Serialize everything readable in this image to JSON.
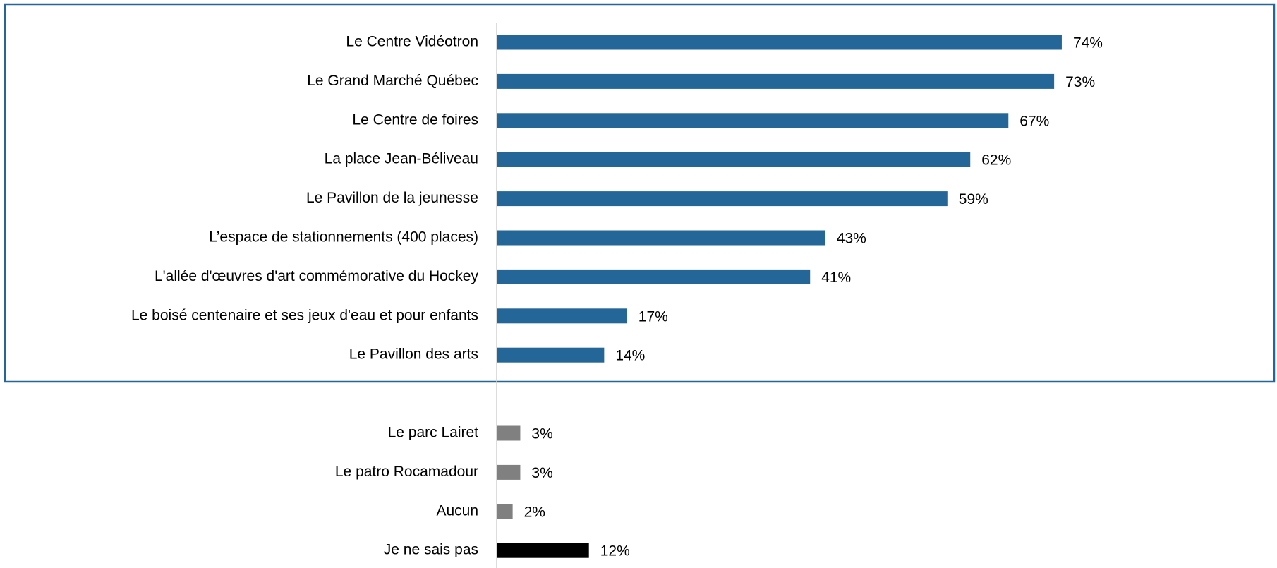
{
  "chart_data": {
    "type": "bar",
    "orientation": "horizontal",
    "categories": [
      "Le Centre Vidéotron",
      "Le Grand Marché Québec",
      "Le Centre de foires",
      "La place Jean-Béliveau",
      "Le Pavillon de la jeunesse",
      "L’espace de stationnements (400 places)",
      "L'allée d'œuvres d'art commémorative du Hockey",
      "Le boisé centenaire et ses jeux d'eau et pour enfants",
      "Le Pavillon des arts",
      null,
      "Le parc Lairet",
      "Le patro Rocamadour",
      "Aucun",
      "Je ne sais pas"
    ],
    "values": [
      74,
      73,
      67,
      62,
      59,
      43,
      41,
      17,
      14,
      null,
      3,
      3,
      2,
      12
    ],
    "value_labels": [
      "74%",
      "73%",
      "67%",
      "62%",
      "59%",
      "43%",
      "41%",
      "17%",
      "14%",
      null,
      "3%",
      "3%",
      "2%",
      "12%"
    ],
    "colors": [
      "#236697",
      "#236697",
      "#236697",
      "#236697",
      "#236697",
      "#236697",
      "#236697",
      "#236697",
      "#236697",
      null,
      "#808080",
      "#808080",
      "#808080",
      "#000000"
    ]
  }
}
